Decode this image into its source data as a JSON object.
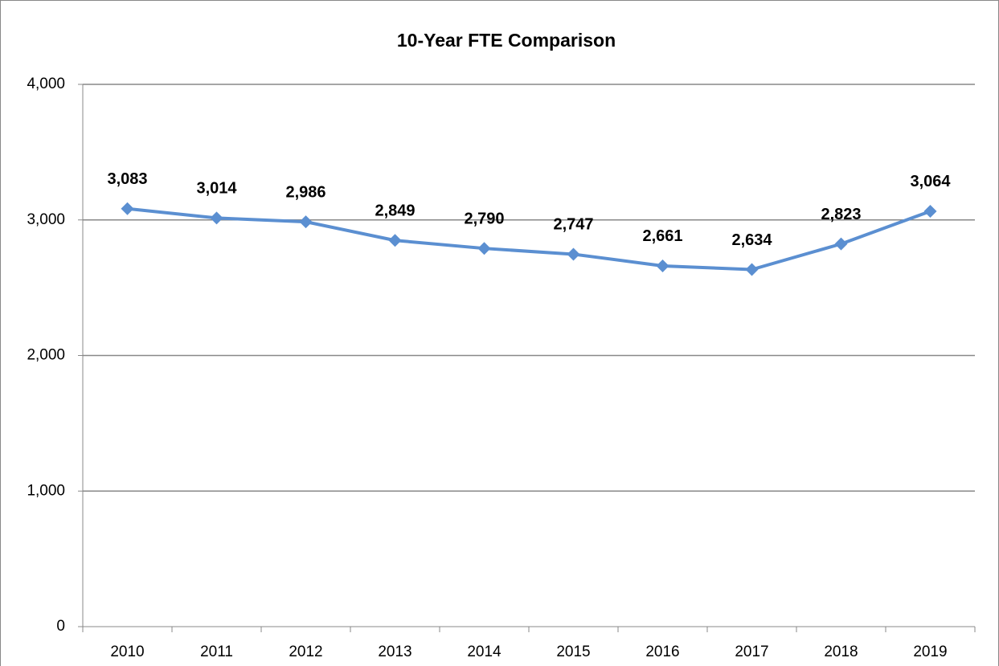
{
  "chart_data": {
    "type": "line",
    "title": "10-Year FTE Comparison",
    "categories": [
      "2010",
      "2011",
      "2012",
      "2013",
      "2014",
      "2015",
      "2016",
      "2017",
      "2018",
      "2019"
    ],
    "series": [
      {
        "name": "FTE",
        "color": "#5b8fd1",
        "values": [
          3083,
          3014,
          2986,
          2849,
          2790,
          2747,
          2661,
          2634,
          2823,
          3064
        ]
      }
    ],
    "value_labels": [
      "3,083",
      "3,014",
      "2,986",
      "2,849",
      "2,790",
      "2,747",
      "2,661",
      "2,634",
      "2,823",
      "3,064"
    ],
    "ylim": [
      0,
      4000
    ],
    "yticks": [
      0,
      {
        "value": 1000,
        "label": "1,000"
      },
      {
        "value": 2000,
        "label": "2,000"
      },
      {
        "value": 3000,
        "label": "3,000"
      },
      {
        "value": 4000,
        "label": "4,000"
      }
    ],
    "grid": true
  }
}
